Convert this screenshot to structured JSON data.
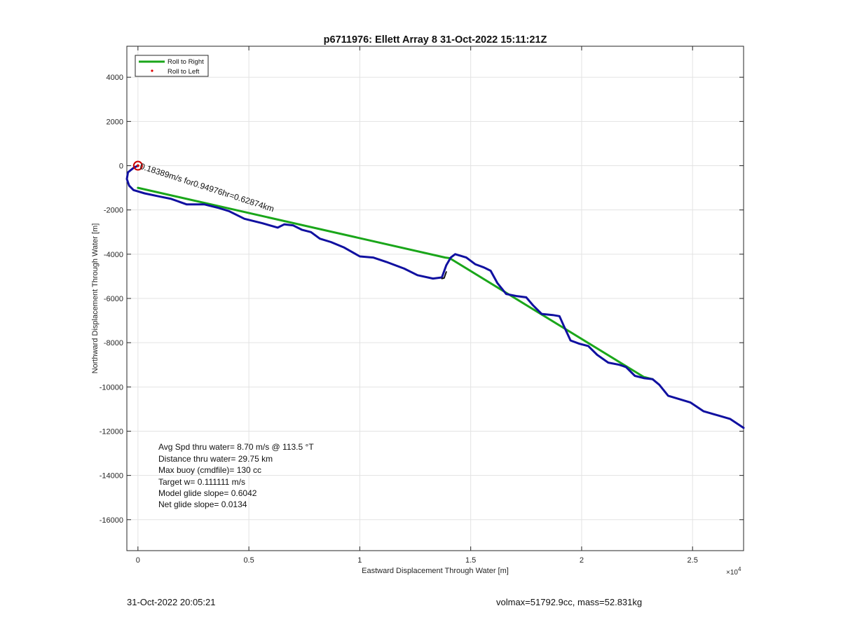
{
  "chart_data": {
    "type": "line",
    "title": "p6711976: Ellett Array 8 31-Oct-2022 15:11:21Z",
    "xlabel": "Eastward Displacement Through Water [m]",
    "ylabel": "Northward Displacement Through Water [m]",
    "xlim": [
      -500,
      27300
    ],
    "ylim": [
      -17400,
      5400
    ],
    "x_exponent_label": "×10",
    "x_exponent_power": "4",
    "x_ticks": [
      0,
      5000,
      10000,
      15000,
      20000,
      25000
    ],
    "x_tick_labels": [
      "0",
      "0.5",
      "1",
      "1.5",
      "2",
      "2.5"
    ],
    "y_ticks": [
      4000,
      2000,
      0,
      -2000,
      -4000,
      -6000,
      -8000,
      -10000,
      -12000,
      -14000,
      -16000
    ],
    "y_tick_labels": [
      "4000",
      "2000",
      "0",
      "-2000",
      "-4000",
      "-6000",
      "-8000",
      "-10000",
      "-12000",
      "-14000",
      "-16000"
    ],
    "grid": true,
    "legend_position": "top-left",
    "legend": [
      {
        "label": "Roll to Right",
        "color": "#1aa61a",
        "style": "line"
      },
      {
        "label": "Roll to Left",
        "color": "#e00000",
        "style": "dot"
      }
    ],
    "series": [
      {
        "color": "#1aa61a",
        "x": [
          0,
          13850,
          14050,
          22800,
          23200
        ],
        "y": [
          -1000,
          -4150,
          -4180,
          -9550,
          -9650
        ]
      },
      {
        "color": "#1010a0",
        "x": [
          0,
          -200,
          -450,
          -500,
          -400,
          -200,
          300,
          1000,
          1500,
          2200,
          3000,
          3600,
          4100,
          4800,
          5600,
          6300,
          6600,
          7000,
          7400,
          7800,
          8200,
          8700,
          9300,
          10000,
          10600,
          11200,
          12000,
          12600,
          13300,
          13700,
          13900,
          14100,
          14300,
          14800,
          15200,
          15600,
          15900,
          16200,
          16600,
          17100,
          17500,
          17800,
          18200,
          18700,
          19000,
          19200,
          19500,
          19900,
          20300,
          20700,
          21200,
          21700,
          22000,
          22400,
          22800,
          23200,
          23500,
          23900,
          24400,
          24900,
          25500,
          26200,
          26700,
          27300
        ],
        "y": [
          0,
          -100,
          -300,
          -600,
          -900,
          -1100,
          -1250,
          -1400,
          -1500,
          -1750,
          -1750,
          -1900,
          -2050,
          -2400,
          -2600,
          -2800,
          -2650,
          -2700,
          -2900,
          -3000,
          -3300,
          -3450,
          -3700,
          -4100,
          -4150,
          -4350,
          -4650,
          -4950,
          -5100,
          -5050,
          -4500,
          -4150,
          -4000,
          -4150,
          -4450,
          -4600,
          -4750,
          -5300,
          -5800,
          -5900,
          -5950,
          -6300,
          -6700,
          -6750,
          -6800,
          -7250,
          -7900,
          -8050,
          -8150,
          -8550,
          -8900,
          -9000,
          -9100,
          -9500,
          -9600,
          -9650,
          -9900,
          -10400,
          -10550,
          -10700,
          -11100,
          -11300,
          -11450,
          -11850
        ]
      },
      {
        "color": "#111111",
        "x": [
          13700,
          13800,
          13900
        ],
        "y": [
          -5100,
          -5080,
          -4800
        ]
      }
    ],
    "start_marker": {
      "x": 0,
      "y": 0
    },
    "current_annotation": {
      "text": "0.18389m/s for0.94976hr=0.62874km",
      "x": 0,
      "y": 0,
      "angle": 18
    },
    "annotations": [
      "Avg Spd thru water=  8.70 m/s @ 113.5 °T",
      "Distance thru water= 29.75 km",
      "Max buoy (cmdfile)= 130 cc",
      "Target w= 0.111111 m/s",
      "Model glide slope= 0.6042",
      "Net glide slope= 0.0134"
    ]
  },
  "footer": {
    "left": "31-Oct-2022 20:05:21",
    "right": "volmax=51792.9cc, mass=52.831kg"
  }
}
